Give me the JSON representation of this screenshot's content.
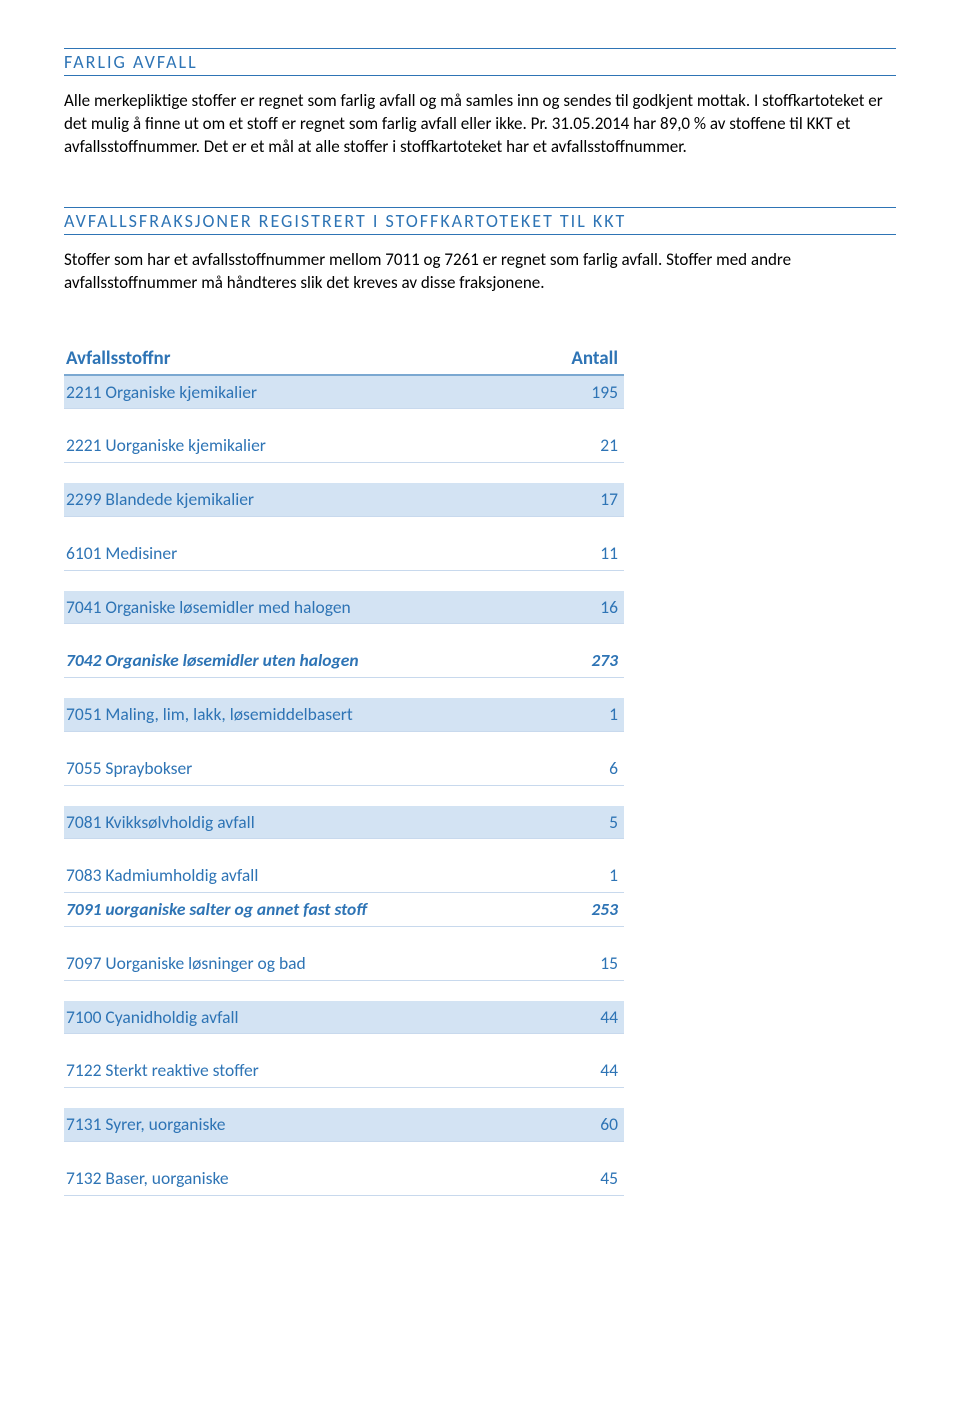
{
  "section1": {
    "heading": "FARLIG AVFALL",
    "body": "Alle merkepliktige stoffer er regnet som farlig avfall og må samles inn og sendes til godkjent mottak.  I stoffkartoteket er det mulig å finne ut om et stoff er regnet som farlig avfall eller ikke. Pr. 31.05.2014 har 89,0 % av stoffene til KKT et avfallsstoffnummer. Det er et mål at alle stoffer i stoffkartoteket har et avfallsstoffnummer."
  },
  "section2": {
    "heading": "AVFALLSFRAKSJONER REGISTRERT I STOFFKARTOTEKET TIL KKT",
    "body": "Stoffer som har et avfallsstoffnummer mellom 7011 og 7261 er regnet som farlig avfall. Stoffer med andre avfallsstoffnummer må håndteres slik det kreves av disse fraksjonene."
  },
  "table": {
    "col1": "Avfallsstoffnr",
    "col2": "Antall",
    "rows": [
      {
        "label": "2211 Organiske kjemikalier",
        "value": "195",
        "shaded": true
      },
      {
        "label": "2221 Uorganiske kjemikalier",
        "value": "21",
        "shaded": false
      },
      {
        "label": "2299 Blandede kjemikalier",
        "value": "17",
        "shaded": true
      },
      {
        "label": "6101 Medisiner",
        "value": "11",
        "shaded": false
      },
      {
        "label": "7041 Organiske løsemidler med halogen",
        "value": "16",
        "shaded": true
      },
      {
        "label": "7042 Organiske løsemidler uten halogen",
        "value": "273",
        "shaded": false,
        "bold": true
      },
      {
        "label": "7051 Maling, lim, lakk, løsemiddelbasert",
        "value": "1",
        "shaded": true
      },
      {
        "label": "7055 Spraybokser",
        "value": "6",
        "shaded": false
      },
      {
        "label": "7081 Kvikksølvholdig avfall",
        "value": "5",
        "shaded": true
      },
      {
        "label": "7083 Kadmiumholdig avfall",
        "value": "1",
        "shaded": false,
        "nospacer": true
      },
      {
        "label": "7091 uorganiske salter og annet fast stoff",
        "value": "253",
        "shaded": false,
        "bold": true
      },
      {
        "label": "7097 Uorganiske løsninger og bad",
        "value": "15",
        "shaded": false
      },
      {
        "label": "7100 Cyanidholdig avfall",
        "value": "44",
        "shaded": true
      },
      {
        "label": "7122 Sterkt reaktive stoffer",
        "value": "44",
        "shaded": false
      },
      {
        "label": "7131 Syrer, uorganiske",
        "value": "60",
        "shaded": true
      },
      {
        "label": "7132 Baser, uorganiske",
        "value": "45",
        "shaded": false
      }
    ]
  }
}
